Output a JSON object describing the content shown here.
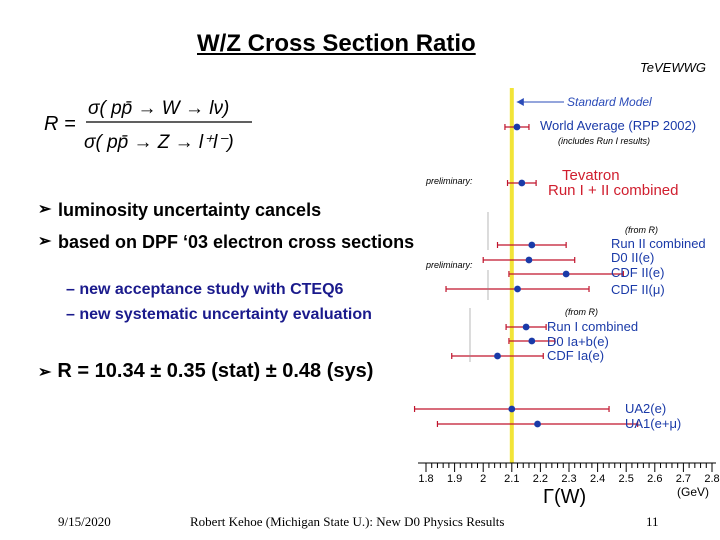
{
  "slide": {
    "title": "W/Z Cross Section Ratio",
    "formula": {
      "lhs": "R =",
      "numerator": "σ( pp̄ → W → lν)",
      "denominator": "σ( pp̄ → Z → l⁺l⁻)"
    },
    "bullets": [
      "luminosity uncertainty cancels",
      "based on DPF ‘03 electron cross sections"
    ],
    "sub_bullets": [
      "new acceptance study with CTEQ6",
      "new systematic uncertainty evaluation"
    ],
    "result": "R = 10.34 ± 0.35 (stat) ± 0.48 (sys)",
    "footer": {
      "date": "9/15/2020",
      "author": "Robert Kehoe (Michigan State U.): New D0 Physics Results",
      "page": "11"
    }
  },
  "chart_data": {
    "type": "scatter",
    "title": "TeVEWWG",
    "xlabel": "Γ(W)",
    "xunit": "(GeV)",
    "xlim": [
      1.8,
      2.8
    ],
    "xticks": [
      "1.8",
      "1.9",
      "2",
      "2.1",
      "2.2",
      "2.3",
      "2.4",
      "2.5",
      "2.6",
      "2.7",
      "2.8"
    ],
    "standard_model": {
      "value": 2.1,
      "label": "Standard Model"
    },
    "points": [
      {
        "label": "World Average (RPP 2002)",
        "note": "(includes Run I results)",
        "value": 2.118,
        "err": 0.042,
        "color": "#1a3aa8"
      },
      {
        "label": "Tevatron",
        "label2": "Run I + II combined",
        "value": 2.135,
        "err": 0.05,
        "color": "#d01e2e"
      },
      {
        "label": "Run II combined",
        "value": 2.17,
        "err": 0.12,
        "color": "#1a3aa8"
      },
      {
        "label": "D0 II(e)",
        "value": 2.16,
        "err": 0.16,
        "color": "#1a3aa8"
      },
      {
        "label": "CDF II(e)",
        "value": 2.29,
        "err": 0.2,
        "color": "#1a3aa8"
      },
      {
        "label": "CDF II(μ)",
        "value": 2.12,
        "err": 0.25,
        "color": "#1a3aa8"
      },
      {
        "label": "Run I combined",
        "value": 2.15,
        "err": 0.07,
        "color": "#1a3aa8"
      },
      {
        "label": "D0 Ia+b(e)",
        "value": 2.17,
        "err": 0.08,
        "color": "#1a3aa8"
      },
      {
        "label": "CDF Ia(e)",
        "value": 2.05,
        "err": 0.16,
        "color": "#1a3aa8"
      },
      {
        "label": "UA2(e)",
        "value": 2.1,
        "err": 0.34,
        "color": "#1a3aa8"
      },
      {
        "label": "UA1(e+μ)",
        "value": 2.19,
        "err": 0.35,
        "color": "#1a3aa8"
      }
    ],
    "annotations": {
      "preliminary": "preliminary:",
      "from_r": "(from R)"
    }
  }
}
